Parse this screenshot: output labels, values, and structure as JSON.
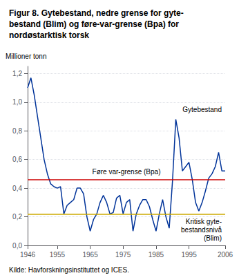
{
  "chart_data": {
    "type": "line",
    "title": "Figur 8. Gytebestand, nedre grense for gyte-\nbestand (Blim) og føre-var-grense (Bpa) for\nnordøstarktisk torsk",
    "ylabel": "Millioner tonn",
    "source": "Kilde: Havforskningsinstituttet og ICES.",
    "x": [
      1946,
      1947,
      1948,
      1949,
      1950,
      1951,
      1952,
      1953,
      1954,
      1955,
      1956,
      1957,
      1958,
      1959,
      1960,
      1961,
      1962,
      1963,
      1964,
      1965,
      1966,
      1967,
      1968,
      1969,
      1970,
      1971,
      1972,
      1973,
      1974,
      1975,
      1976,
      1977,
      1978,
      1979,
      1980,
      1981,
      1982,
      1983,
      1984,
      1985,
      1986,
      1987,
      1988,
      1989,
      1990,
      1991,
      1992,
      1993,
      1994,
      1995,
      1996,
      1997,
      1998,
      1999,
      2000,
      2001,
      2002,
      2003,
      2004,
      2005,
      2006
    ],
    "series": [
      {
        "label": "Gytebestand",
        "color": "#003399",
        "values": [
          1.1,
          1.17,
          1.05,
          0.9,
          0.75,
          0.6,
          0.5,
          0.43,
          0.41,
          0.4,
          0.41,
          0.22,
          0.28,
          0.3,
          0.32,
          0.4,
          0.4,
          0.36,
          0.2,
          0.1,
          0.18,
          0.22,
          0.3,
          0.35,
          0.3,
          0.22,
          0.23,
          0.33,
          0.35,
          0.22,
          0.3,
          0.32,
          0.1,
          0.22,
          0.28,
          0.32,
          0.32,
          0.27,
          0.18,
          0.1,
          0.22,
          0.32,
          0.2,
          0.12,
          0.45,
          0.88,
          0.75,
          0.52,
          0.55,
          0.58,
          0.46,
          0.3,
          0.24,
          0.3,
          0.38,
          0.47,
          0.5,
          0.55,
          0.65,
          0.52,
          0.52
        ]
      }
    ],
    "reference_lines": [
      {
        "value": 0.46,
        "color": "#cc0000",
        "label": "Føre var-grense (Bpa)"
      },
      {
        "value": 0.22,
        "color": "#ccaa00",
        "label": "Kritisk gyte-\nbestandsnivå\n(Blim)"
      }
    ],
    "xlim": [
      1946,
      2006
    ],
    "xticks": [
      1946,
      1955,
      1965,
      1975,
      1985,
      1995,
      2006
    ],
    "ylim": [
      0.0,
      1.25
    ],
    "yticks": [
      {
        "value": 0.0,
        "label": "0,0"
      },
      {
        "value": 0.2,
        "label": "0,2"
      },
      {
        "value": 0.4,
        "label": "0,4"
      },
      {
        "value": 0.6,
        "label": "0,6"
      },
      {
        "value": 0.8,
        "label": "0,8"
      },
      {
        "value": 1.0,
        "label": "1,0"
      },
      {
        "value": 1.2,
        "label": "1,2"
      }
    ],
    "grid": "y"
  }
}
